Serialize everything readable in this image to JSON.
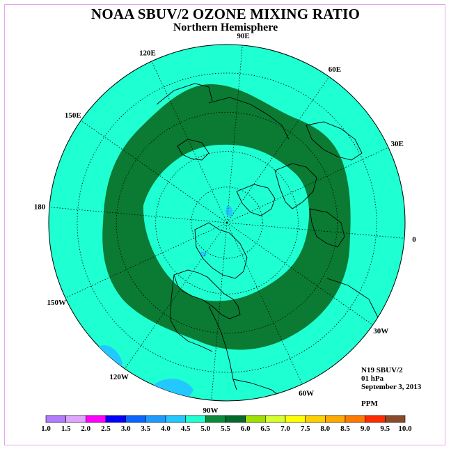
{
  "header": {
    "title": "NOAA SBUV/2 OZONE MIXING RATIO",
    "subtitle": "Northern Hemisphere"
  },
  "info": {
    "instrument": "N19 SBUV/2",
    "level": "01 hPa",
    "date": "September 3, 2013",
    "units": "PPM"
  },
  "map": {
    "projection": "north polar stereographic",
    "longitude_labels": [
      "90E",
      "60E",
      "30E",
      "0",
      "30W",
      "60W",
      "90W",
      "120W",
      "150W",
      "180",
      "150E",
      "120E"
    ],
    "background_color": "#1effd2",
    "band_color": "#0b7a33",
    "high_band_range": "5.0-5.5",
    "ambient_range": "4.5-5.0",
    "low_patches_color": "#22c8ff"
  },
  "colorbar": {
    "ticks": [
      "1.0",
      "1.5",
      "2.0",
      "2.5",
      "3.0",
      "3.5",
      "4.0",
      "4.5",
      "5.0",
      "5.5",
      "6.0",
      "6.5",
      "7.0",
      "7.5",
      "8.0",
      "8.5",
      "9.0",
      "9.5",
      "10.0"
    ],
    "colors": [
      "#b27cff",
      "#e0a6ff",
      "#ff00ff",
      "#0000ff",
      "#0a64ff",
      "#1e9bff",
      "#22c8ff",
      "#1effd2",
      "#0b8a3a",
      "#05692b",
      "#9ee000",
      "#d6ff2e",
      "#ffff00",
      "#ffd000",
      "#ffaa00",
      "#ff7a00",
      "#ff2a00",
      "#e00000",
      "#8b4a2b"
    ]
  }
}
